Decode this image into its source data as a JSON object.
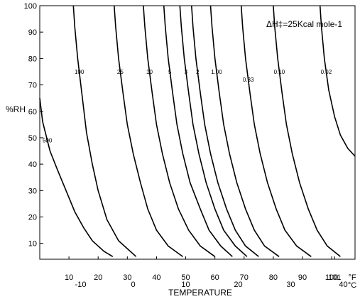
{
  "chart_data": {
    "type": "line",
    "title": "",
    "ylabel": "%RH",
    "xlabel": "TEMPERATURE",
    "ylim": [
      4,
      100
    ],
    "yticks": [
      10,
      20,
      30,
      40,
      50,
      60,
      70,
      80,
      90,
      100
    ],
    "x_axis_primary": {
      "unit": "°F",
      "range": [
        0,
        108
      ],
      "ticks": [
        10,
        20,
        30,
        40,
        50,
        60,
        70,
        80,
        90,
        100,
        101
      ]
    },
    "x_axis_secondary": {
      "unit": "°C",
      "ticks": [
        -10,
        0,
        10,
        20,
        30,
        40
      ]
    },
    "annotation": "ΔH‡=25Kcal mole-1",
    "series": [
      {
        "name": "500",
        "label_rh": 49,
        "points": [
          [
            0,
            65
          ],
          [
            1,
            56
          ],
          [
            3.5,
            45
          ],
          [
            6,
            38
          ],
          [
            9,
            30
          ],
          [
            12,
            22
          ],
          [
            15,
            16
          ],
          [
            18,
            11
          ],
          [
            22,
            7
          ],
          [
            25,
            5
          ]
        ]
      },
      {
        "name": "100",
        "label_rh": 75,
        "points": [
          [
            11.5,
            100
          ],
          [
            12,
            92
          ],
          [
            13,
            80
          ],
          [
            14.5,
            66
          ],
          [
            16,
            52
          ],
          [
            18,
            40
          ],
          [
            20,
            30
          ],
          [
            23,
            19
          ],
          [
            27,
            11
          ],
          [
            30,
            8
          ],
          [
            33,
            5
          ]
        ]
      },
      {
        "name": "25",
        "label_rh": 75,
        "points": [
          [
            25.5,
            100
          ],
          [
            26,
            92
          ],
          [
            27,
            80
          ],
          [
            28.5,
            67
          ],
          [
            30,
            55
          ],
          [
            32,
            44
          ],
          [
            34.5,
            33
          ],
          [
            37,
            23
          ],
          [
            40,
            15
          ],
          [
            44,
            9
          ],
          [
            49,
            5
          ]
        ]
      },
      {
        "name": "10",
        "label_rh": 75,
        "points": [
          [
            35.5,
            100
          ],
          [
            36,
            92
          ],
          [
            37,
            80
          ],
          [
            38.5,
            67
          ],
          [
            40,
            55
          ],
          [
            42,
            44
          ],
          [
            44.5,
            33
          ],
          [
            47.5,
            23
          ],
          [
            51,
            15
          ],
          [
            55,
            9
          ],
          [
            60,
            5
          ]
        ]
      },
      {
        "name": "5",
        "label_rh": 75,
        "points": [
          [
            42.5,
            100
          ],
          [
            43,
            92
          ],
          [
            44,
            80
          ],
          [
            45.5,
            67
          ],
          [
            47,
            55
          ],
          [
            49,
            44
          ],
          [
            51.5,
            33
          ],
          [
            55,
            23
          ],
          [
            58,
            15
          ],
          [
            62,
            9
          ],
          [
            66,
            5
          ]
        ]
      },
      {
        "name": "3",
        "label_rh": 75,
        "points": [
          [
            48,
            100
          ],
          [
            48.5,
            92
          ],
          [
            49.5,
            80
          ],
          [
            51,
            67
          ],
          [
            52.5,
            55
          ],
          [
            54.5,
            44
          ],
          [
            57,
            33
          ],
          [
            60,
            23
          ],
          [
            63,
            15
          ],
          [
            67,
            9
          ],
          [
            71,
            5
          ]
        ]
      },
      {
        "name": "2",
        "label_rh": 75,
        "points": [
          [
            52,
            100
          ],
          [
            52.5,
            92
          ],
          [
            53.5,
            80
          ],
          [
            55,
            67
          ],
          [
            56.5,
            55
          ],
          [
            58.5,
            44
          ],
          [
            61,
            33
          ],
          [
            64,
            23
          ],
          [
            67,
            15
          ],
          [
            70.5,
            9
          ],
          [
            75,
            5
          ]
        ]
      },
      {
        "name": "1.00",
        "label_rh": 75,
        "points": [
          [
            58.5,
            100
          ],
          [
            59,
            92
          ],
          [
            60,
            80
          ],
          [
            61.5,
            67
          ],
          [
            63,
            55
          ],
          [
            65,
            44
          ],
          [
            67.5,
            33
          ],
          [
            70.5,
            23
          ],
          [
            73.5,
            15
          ],
          [
            77,
            9
          ],
          [
            82,
            5
          ]
        ]
      },
      {
        "name": "0.33",
        "label_rh": 72,
        "points": [
          [
            69,
            100
          ],
          [
            69.5,
            92
          ],
          [
            70.5,
            80
          ],
          [
            72,
            67
          ],
          [
            73.5,
            55
          ],
          [
            75.5,
            44
          ],
          [
            78,
            33
          ],
          [
            81,
            23
          ],
          [
            84,
            15
          ],
          [
            88,
            9
          ],
          [
            93,
            5
          ]
        ]
      },
      {
        "name": "0.10",
        "label_rh": 75,
        "points": [
          [
            80,
            100
          ],
          [
            80.5,
            92
          ],
          [
            81.5,
            80
          ],
          [
            83,
            67
          ],
          [
            84.5,
            55
          ],
          [
            86.5,
            44
          ],
          [
            89,
            33
          ],
          [
            92,
            23
          ],
          [
            95,
            15
          ],
          [
            98.5,
            9
          ],
          [
            103,
            5
          ]
        ]
      },
      {
        "name": "0.02",
        "label_rh": 75,
        "points": [
          [
            96,
            100
          ],
          [
            96.5,
            92
          ],
          [
            97.5,
            80
          ],
          [
            99,
            68
          ],
          [
            101,
            58
          ],
          [
            103,
            51
          ],
          [
            105.5,
            46
          ],
          [
            108,
            43
          ]
        ]
      }
    ]
  }
}
